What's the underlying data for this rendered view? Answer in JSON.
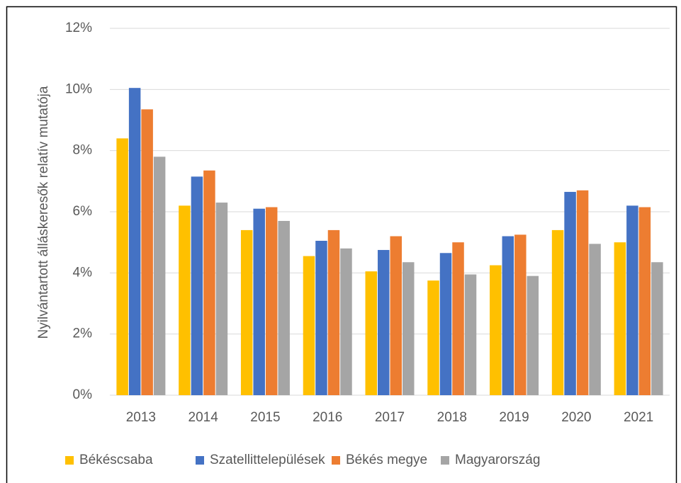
{
  "chart_data": {
    "type": "bar",
    "y_label": "Nyilvántartott álláskeresők relatív mutatója",
    "categories": [
      "2013",
      "2014",
      "2015",
      "2016",
      "2017",
      "2018",
      "2019",
      "2020",
      "2021"
    ],
    "series": [
      {
        "name": "Békéscsaba",
        "color": "#ffc000",
        "values": [
          8.4,
          6.2,
          5.4,
          4.55,
          4.05,
          3.75,
          4.25,
          5.4,
          5.0
        ]
      },
      {
        "name": "Szatellittelepülések",
        "color": "#4472c4",
        "values": [
          10.05,
          7.15,
          6.1,
          5.05,
          4.75,
          4.65,
          5.2,
          6.65,
          6.2
        ]
      },
      {
        "name": "Békés megye",
        "color": "#ed7d31",
        "values": [
          9.35,
          7.35,
          6.15,
          5.4,
          5.2,
          5.0,
          5.25,
          6.7,
          6.15
        ]
      },
      {
        "name": "Magyarország",
        "color": "#a5a5a5",
        "values": [
          7.8,
          6.3,
          5.7,
          4.8,
          4.35,
          3.95,
          3.9,
          4.95,
          4.35
        ]
      }
    ],
    "ylim": [
      0,
      12
    ],
    "yticks": [
      {
        "value": 0,
        "label": "0%"
      },
      {
        "value": 2,
        "label": "2%"
      },
      {
        "value": 4,
        "label": "4%"
      },
      {
        "value": 6,
        "label": "6%"
      },
      {
        "value": 8,
        "label": "8%"
      },
      {
        "value": 10,
        "label": "10%"
      },
      {
        "value": 12,
        "label": "12%"
      }
    ],
    "grid": true,
    "legend": "bottom"
  }
}
